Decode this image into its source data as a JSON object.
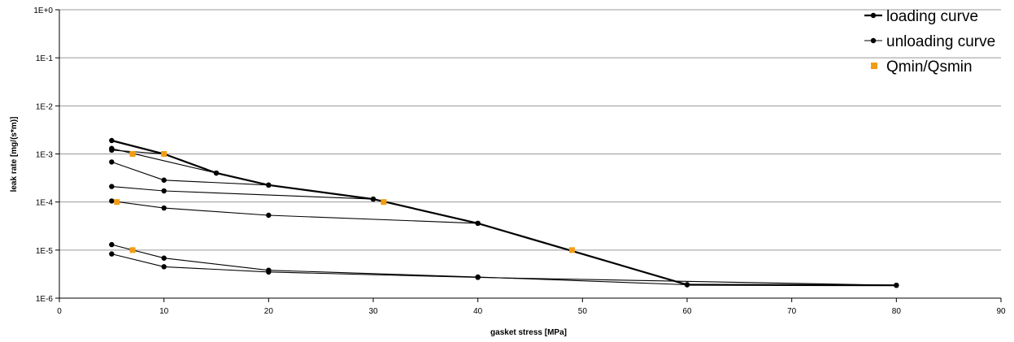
{
  "chart_data": {
    "type": "line",
    "title": "",
    "xlabel": "gasket stress [MPa]",
    "ylabel": "leak rate [mg/(s*m)]",
    "xlim": [
      0,
      90
    ],
    "ylim": [
      1e-06,
      1
    ],
    "yscale": "log",
    "x_ticks": [
      0,
      10,
      20,
      30,
      40,
      50,
      60,
      70,
      80,
      90
    ],
    "y_ticks": [
      {
        "value": 1e-06,
        "label": "1E-6"
      },
      {
        "value": 1e-05,
        "label": "1E-5"
      },
      {
        "value": 0.0001,
        "label": "1E-4"
      },
      {
        "value": 0.001,
        "label": "1E-3"
      },
      {
        "value": 0.01,
        "label": "1E-2"
      },
      {
        "value": 0.1,
        "label": "1E-1"
      },
      {
        "value": 1,
        "label": "1E+0"
      }
    ],
    "grid": "horizontal",
    "legend_position": "top-right",
    "colors": {
      "line": "#000000",
      "marker": "#000000",
      "qmin": "#f39c12",
      "grid": "#999999"
    },
    "legend": [
      {
        "label": "loading curve",
        "style": "line-marker"
      },
      {
        "label": "unloading curve",
        "style": "line-marker"
      },
      {
        "label": "Qmin/Qsmin",
        "style": "square"
      }
    ],
    "series": [
      {
        "name": "loading curve",
        "kind": "loading",
        "points": [
          [
            5,
            0.0019
          ],
          [
            10,
            0.001
          ],
          [
            15,
            0.0004
          ],
          [
            20,
            0.000225
          ],
          [
            30,
            0.000115
          ],
          [
            40,
            3.6e-05
          ],
          [
            60,
            1.9e-06
          ],
          [
            80,
            1.85e-06
          ]
        ]
      },
      {
        "name": "unloading curve",
        "kind": "unloading",
        "points": [
          [
            5,
            0.0013
          ],
          [
            15,
            0.0004
          ]
        ]
      },
      {
        "kind": "unloading",
        "points": [
          [
            5,
            0.0012
          ],
          [
            10,
            0.001
          ]
        ]
      },
      {
        "kind": "unloading",
        "points": [
          [
            5,
            0.00068
          ],
          [
            10,
            0.000285
          ],
          [
            20,
            0.000225
          ]
        ]
      },
      {
        "kind": "unloading",
        "points": [
          [
            5,
            0.00021
          ],
          [
            10,
            0.00017
          ],
          [
            30,
            0.000115
          ]
        ]
      },
      {
        "kind": "unloading",
        "points": [
          [
            5,
            0.000105
          ],
          [
            10,
            7.5e-05
          ],
          [
            20,
            5.3e-05
          ],
          [
            40,
            3.6e-05
          ]
        ]
      },
      {
        "kind": "unloading",
        "points": [
          [
            5,
            1.3e-05
          ],
          [
            10,
            6.8e-06
          ],
          [
            20,
            3.8e-06
          ],
          [
            40,
            2.75e-06
          ],
          [
            60,
            1.9e-06
          ]
        ]
      },
      {
        "kind": "unloading",
        "points": [
          [
            5,
            8.3e-06
          ],
          [
            10,
            4.5e-06
          ],
          [
            20,
            3.5e-06
          ],
          [
            40,
            2.7e-06
          ],
          [
            80,
            1.85e-06
          ]
        ]
      }
    ],
    "qmin_points": [
      [
        7,
        0.001
      ],
      [
        10,
        0.001
      ],
      [
        5.5,
        0.0001
      ],
      [
        31,
        0.0001
      ],
      [
        7,
        1e-05
      ],
      [
        49,
        1e-05
      ]
    ]
  }
}
